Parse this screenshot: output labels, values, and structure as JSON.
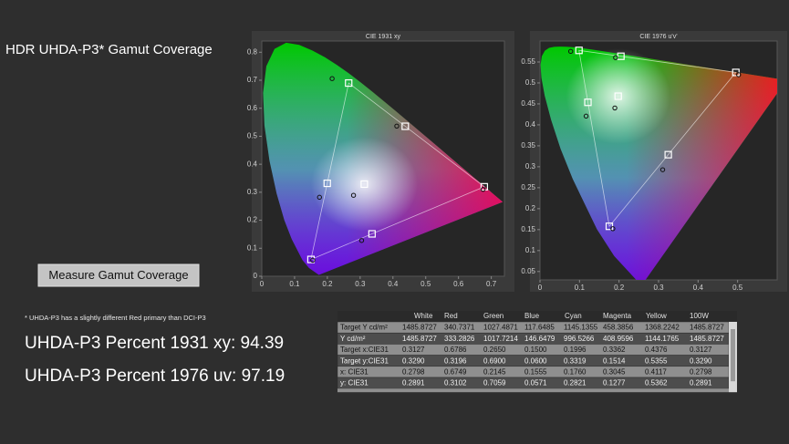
{
  "header": {
    "title": "HDR UHDA-P3* Gamut Coverage"
  },
  "button": {
    "label": "Measure Gamut Coverage"
  },
  "footnote": "* UHDA-P3 has a slightly different Red primary than DCI-P3",
  "results": [
    "UHDA-P3 Percent 1931 xy: 94.39",
    "UHDA-P3 Percent 1976 uv: 97.19"
  ],
  "plots": [
    {
      "title": "CIE 1931 xy",
      "xlim": [
        0,
        0.74
      ],
      "ylim": [
        0,
        0.84
      ],
      "xticks": [
        0,
        0.1,
        0.2,
        0.3,
        0.4,
        0.5,
        0.6,
        0.7
      ],
      "yticks": [
        0,
        0.1,
        0.2,
        0.3,
        0.4,
        0.5,
        0.6,
        0.7,
        0.8
      ]
    },
    {
      "title": "CIE 1976 u'v'",
      "xlim": [
        0,
        0.6
      ],
      "ylim": [
        0.03,
        0.6
      ],
      "xticks": [
        0,
        0.1,
        0.2,
        0.3,
        0.4,
        0.5
      ],
      "yticks": [
        0.05,
        0.1,
        0.15,
        0.2,
        0.25,
        0.3,
        0.35,
        0.4,
        0.45,
        0.5,
        0.55
      ]
    }
  ],
  "table": {
    "columns": [
      "White",
      "Red",
      "Green",
      "Blue",
      "Cyan",
      "Magenta",
      "Yellow",
      "100W"
    ],
    "rows": [
      [
        "Target Y cd/m²",
        "1485.8727",
        "340.7371",
        "1027.4871",
        "117.6485",
        "1145.1355",
        "458.3856",
        "1368.2242",
        "1485.8727"
      ],
      [
        "Y cd/m²",
        "1485.8727",
        "333.2826",
        "1017.7214",
        "146.6479",
        "996.5266",
        "408.9596",
        "1144.1765",
        "1485.8727"
      ],
      [
        "Target x:CIE31",
        "0.3127",
        "0.6786",
        "0.2650",
        "0.1500",
        "0.1996",
        "0.3362",
        "0.4376",
        "0.3127"
      ],
      [
        "Target y:CIE31",
        "0.3290",
        "0.3196",
        "0.6900",
        "0.0600",
        "0.3319",
        "0.1514",
        "0.5355",
        "0.3290"
      ],
      [
        "x: CIE31",
        "0.2798",
        "0.6749",
        "0.2145",
        "0.1555",
        "0.1760",
        "0.3045",
        "0.4117",
        "0.2798"
      ],
      [
        "y: CIE31",
        "0.2891",
        "0.3102",
        "0.7059",
        "0.0571",
        "0.2821",
        "0.1277",
        "0.5362",
        "0.2891"
      ]
    ]
  }
}
